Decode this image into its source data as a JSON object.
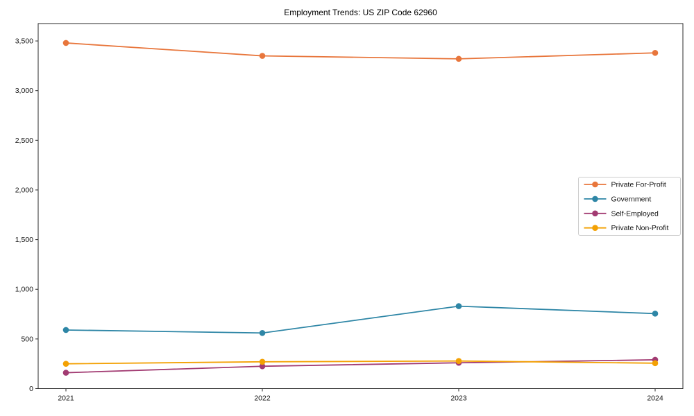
{
  "chart_data": {
    "type": "line",
    "title": "Employment Trends: US ZIP Code 62960",
    "categories": [
      "2021",
      "2022",
      "2023",
      "2024"
    ],
    "series": [
      {
        "name": "Private For-Profit",
        "color": "#E8763C",
        "values": [
          3480,
          3350,
          3320,
          3380
        ]
      },
      {
        "name": "Government",
        "color": "#2E86A6",
        "values": [
          590,
          560,
          830,
          755
        ]
      },
      {
        "name": "Self-Employed",
        "color": "#A23B72",
        "values": [
          160,
          225,
          260,
          290
        ]
      },
      {
        "name": "Private Non-Profit",
        "color": "#F3A104",
        "values": [
          250,
          270,
          278,
          256
        ]
      }
    ],
    "xlabel": "",
    "ylabel": "",
    "ylim": [
      0,
      3675
    ],
    "yticks": [
      0,
      500,
      1000,
      1500,
      2000,
      2500,
      3000,
      3500
    ],
    "y_tick_labels": [
      "0",
      "500",
      "1,000",
      "1,500",
      "2,000",
      "2,500",
      "3,000",
      "3,500"
    ],
    "grid": false,
    "legend_position": "center right",
    "marker": "circle"
  },
  "colors": {
    "spine": "#2a2a2a",
    "legend_border": "#cccccc",
    "background": "#ffffff"
  }
}
